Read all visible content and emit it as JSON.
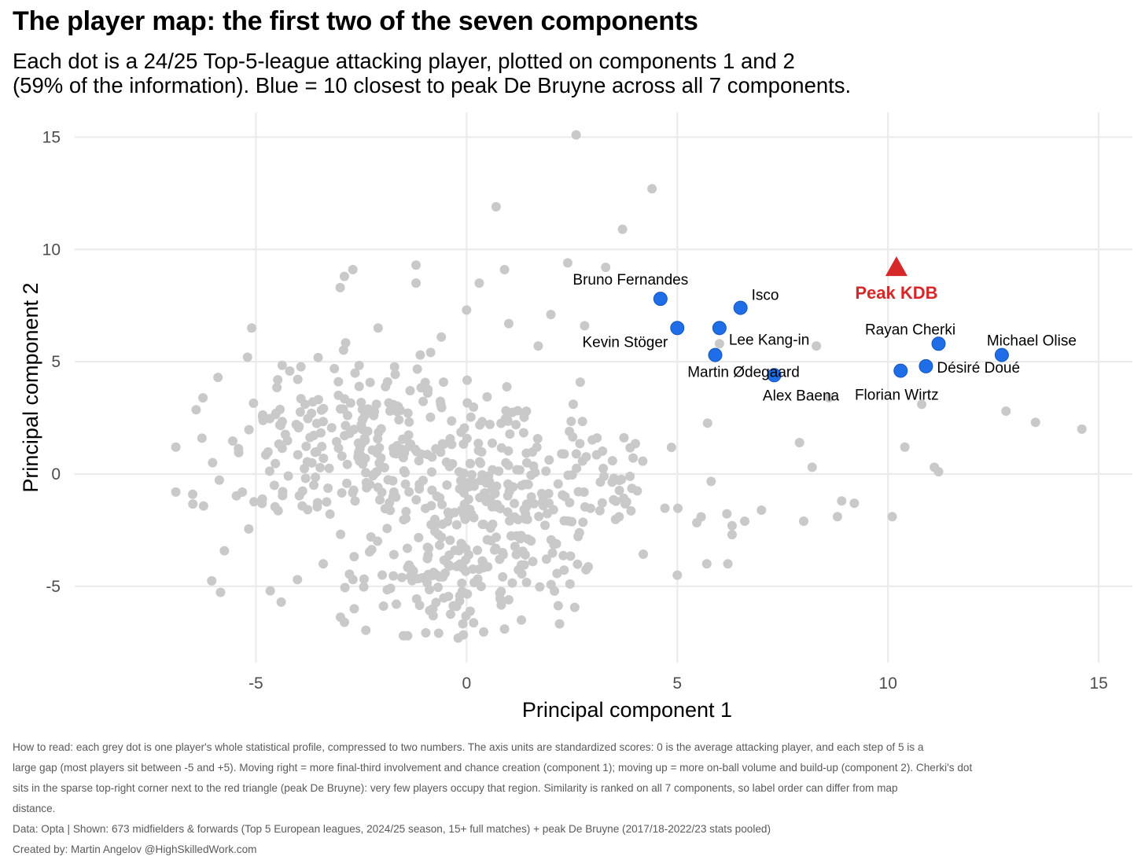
{
  "header": {
    "title": "The player map: the first two of the seven components",
    "subtitle_lines": [
      "Each dot is a 24/25 Top-5-league attacking player, plotted on components 1 and 2",
      "(59% of the information). Blue = 10 closest to peak De Bruyne across all 7 components."
    ]
  },
  "caption": {
    "lines": [
      "How to read: each grey dot is one player's whole statistical profile, compressed to two numbers. The axis units are standardized scores: 0 is the average attacking player, and each step of 5 is a",
      "large gap (most players sit between -5 and +5). Moving right = more final-third involvement and chance creation (component 1); moving up = more on-ball volume and build-up (component 2). Cherki's dot",
      "sits in the sparse top-right corner next to the red triangle (peak De Bruyne): very few players occupy that region. Similarity is ranked on all 7 components, so label order can differ from map",
      "distance."
    ],
    "data_line": "Data: Opta | Shown: 673 midfielders & forwards (Top 5 European leagues, 2024/25 season, 15+ full matches) + peak De Bruyne (2017/18-2022/23 stats pooled)",
    "credit_line": "Created by: Martin Angelov @HighSkilledWork.com"
  },
  "colors": {
    "grey": "#c9c9c9",
    "blue": "#1f6ee8",
    "red": "#d62828",
    "grid": "#ebebeb"
  },
  "chart_data": {
    "type": "scatter",
    "xlabel": "Principal component 1",
    "ylabel": "Principal component 2",
    "xlim": [
      -9.3,
      15.8
    ],
    "ylim": [
      -8.4,
      16.1
    ],
    "x_ticks": [
      -5,
      0,
      5,
      10,
      15
    ],
    "x_tick_labels": [
      "-5",
      "0",
      "5",
      "10",
      "15"
    ],
    "y_ticks": [
      -5,
      0,
      5,
      10,
      15
    ],
    "y_tick_labels": [
      "-5",
      "0",
      "5",
      "10",
      "15"
    ],
    "grid": true,
    "legend": "none",
    "grey_points_n": 673,
    "grey_points_sample": [
      [
        2.6,
        15.1
      ],
      [
        4.4,
        12.7
      ],
      [
        0.7,
        11.9
      ],
      [
        3.7,
        10.9
      ],
      [
        -1.2,
        9.3
      ],
      [
        2.4,
        9.4
      ],
      [
        3.3,
        9.2
      ],
      [
        -2.7,
        9.1
      ],
      [
        0.9,
        9.1
      ],
      [
        -2.9,
        8.8
      ],
      [
        -3.0,
        8.3
      ],
      [
        0.3,
        8.5
      ],
      [
        -1.2,
        8.5
      ],
      [
        0.0,
        7.3
      ],
      [
        -2.1,
        6.5
      ],
      [
        2.0,
        7.1
      ],
      [
        -5.1,
        6.5
      ],
      [
        1.0,
        6.7
      ],
      [
        -0.6,
        6.1
      ],
      [
        2.8,
        6.6
      ],
      [
        1.7,
        5.7
      ],
      [
        -1.1,
        5.3
      ],
      [
        -5.2,
        5.2
      ],
      [
        8.3,
        5.7
      ],
      [
        6.0,
        5.8
      ],
      [
        -5.9,
        4.3
      ],
      [
        8.6,
        3.4
      ],
      [
        10.8,
        3.1
      ],
      [
        12.8,
        2.8
      ],
      [
        13.5,
        2.3
      ],
      [
        14.6,
        2.0
      ],
      [
        -6.9,
        1.2
      ],
      [
        7.9,
        1.4
      ],
      [
        10.4,
        1.2
      ],
      [
        11.1,
        0.3
      ],
      [
        11.2,
        0.1
      ],
      [
        8.2,
        0.3
      ],
      [
        -6.9,
        -0.8
      ],
      [
        -6.5,
        -0.9
      ],
      [
        9.2,
        -1.3
      ],
      [
        8.9,
        -1.2
      ],
      [
        8.8,
        -1.9
      ],
      [
        10.1,
        -1.9
      ],
      [
        8.0,
        -2.1
      ],
      [
        6.6,
        -2.1
      ],
      [
        6.3,
        -2.3
      ],
      [
        6.3,
        -2.7
      ],
      [
        5.0,
        -4.5
      ],
      [
        5.7,
        -4.0
      ],
      [
        6.2,
        -4.0
      ],
      [
        -4.4,
        -5.7
      ],
      [
        0.9,
        -6.9
      ],
      [
        -0.2,
        -7.3
      ],
      [
        -1.5,
        -7.2
      ],
      [
        -1.4,
        -7.2
      ],
      [
        -2.9,
        -6.6
      ],
      [
        1.3,
        -6.5
      ],
      [
        -0.8,
        -6.0
      ],
      [
        1.0,
        -5.6
      ]
    ],
    "highlighted": [
      {
        "name": "Bruno Fernandes",
        "x": 4.6,
        "y": 7.8
      },
      {
        "name": "Isco",
        "x": 6.5,
        "y": 7.4
      },
      {
        "name": "Kevin Stöger",
        "x": 5.0,
        "y": 6.5
      },
      {
        "name": "Lee Kang-in",
        "x": 6.0,
        "y": 6.5
      },
      {
        "name": "Martin Ødegaard",
        "x": 5.9,
        "y": 5.3
      },
      {
        "name": "Alex Baena",
        "x": 7.3,
        "y": 4.4
      },
      {
        "name": "Rayan Cherki",
        "x": 11.2,
        "y": 5.8
      },
      {
        "name": "Michael Olise",
        "x": 12.7,
        "y": 5.3
      },
      {
        "name": "Désiré Doué",
        "x": 10.9,
        "y": 4.8
      },
      {
        "name": "Florian Wirtz",
        "x": 10.3,
        "y": 4.6
      }
    ],
    "reference_point": {
      "name": "Peak KDB",
      "x": 10.2,
      "y": 9.2,
      "marker": "triangle"
    }
  }
}
